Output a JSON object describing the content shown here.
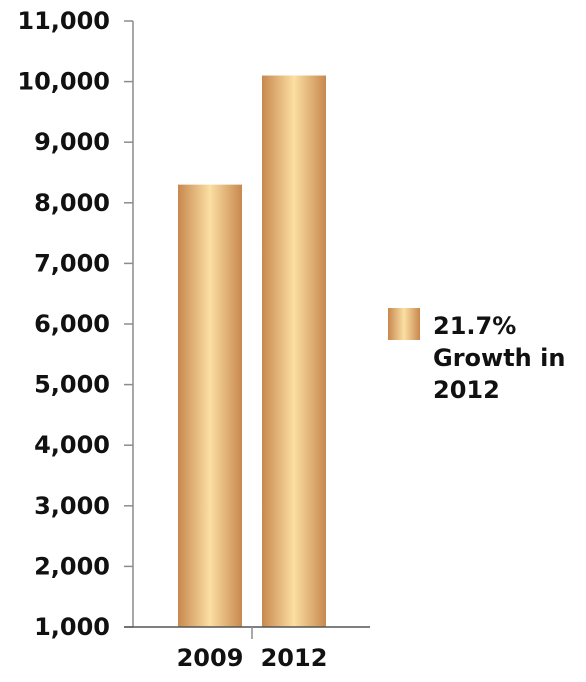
{
  "chart_data": {
    "type": "bar",
    "categories": [
      "2009",
      "2012"
    ],
    "series": [
      {
        "values": [
          8300,
          10100
        ]
      }
    ],
    "ylim": [
      1000,
      11000
    ],
    "yticks": [
      1000,
      2000,
      3000,
      4000,
      5000,
      6000,
      7000,
      8000,
      9000,
      10000,
      11000
    ],
    "ytick_labels": [
      "1,000",
      "2,000",
      "3,000",
      "4,000",
      "5,000",
      "6,000",
      "7,000",
      "8,000",
      "9,000",
      "10,000",
      "11,000"
    ],
    "legend": {
      "lines": [
        "21.7%",
        "Growth in",
        "2012"
      ],
      "placement": "right"
    },
    "grid": false,
    "colors": {
      "bar_edge": "#c8884e",
      "bar_center": "#fbdfa3",
      "axis": "#8c8c8c"
    }
  }
}
